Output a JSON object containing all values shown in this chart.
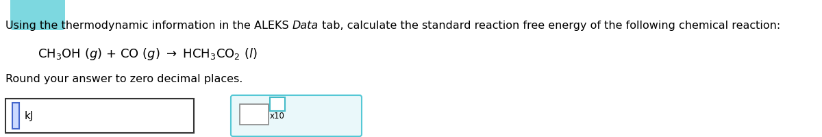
{
  "bg_color": "#ffffff",
  "text_part1": "Using the thermodynamic information in the ALEKS ",
  "text_italic": "Data",
  "text_part2": " tab, calculate the standard reaction free energy of the following chemical reaction:",
  "text_fontsize": 11.5,
  "equation_fontsize": 13,
  "round_text": "Round your answer to zero decimal places.",
  "round_fontsize": 11.5,
  "kJ_text": "kJ",
  "x10_text": "x10",
  "header_color": "#7dd8e0",
  "box1_edge_color": "#333333",
  "box1_face_color": "#ffffff",
  "cursor_edge_color": "#4466cc",
  "cursor_face_color": "#ccdaff",
  "box2_edge_color": "#55c8d5",
  "box2_face_color": "#eaf8fa",
  "small_box1_edge": "#888888",
  "small_box2_edge": "#44bbc8"
}
